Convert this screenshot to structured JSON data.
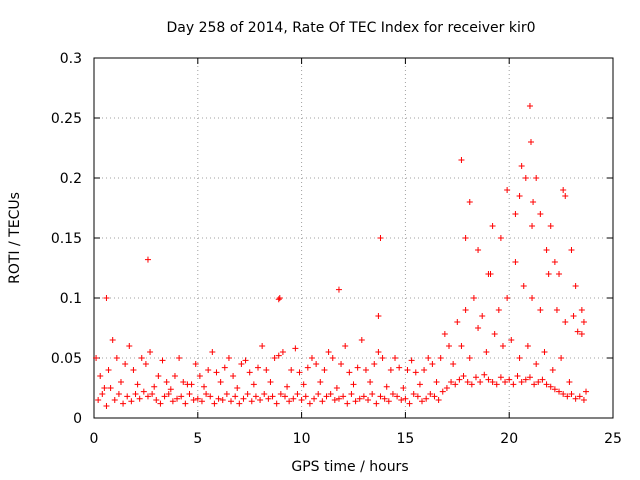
{
  "chart_data": {
    "type": "scatter",
    "title": "Day 258 of 2014, Rate Of TEC Index for receiver kir0",
    "xlabel": "GPS time / hours",
    "ylabel": "ROTI / TECUs",
    "xlim": [
      0,
      25
    ],
    "ylim": [
      0,
      0.3
    ],
    "xticks": [
      0,
      5,
      10,
      15,
      20,
      25
    ],
    "yticks": [
      0,
      0.05,
      0.1,
      0.15,
      0.2,
      0.25,
      0.3
    ],
    "xtick_labels": [
      "0",
      "5",
      "10",
      "15",
      "20",
      "25"
    ],
    "ytick_labels": [
      "0",
      "0.05",
      "0.1",
      "0.15",
      "0.2",
      "0.25",
      "0.3"
    ],
    "grid": true,
    "legend": "none",
    "marker": "plus",
    "color": "#ff0000",
    "series": [
      {
        "x": [
          0.2,
          0.4,
          0.6,
          0.8,
          1.0,
          1.2,
          1.4,
          1.6,
          1.8,
          2.0,
          2.2,
          2.4,
          2.6,
          2.8,
          3.0,
          3.2,
          3.4,
          3.6,
          3.8,
          4.0,
          4.2,
          4.4,
          4.6,
          4.8,
          5.0,
          5.2,
          5.4,
          5.6,
          5.8,
          6.0,
          6.2,
          6.4,
          6.6,
          6.8,
          7.0,
          7.2,
          7.4,
          7.6,
          7.8,
          8.0,
          8.2,
          8.4,
          8.6,
          8.8,
          9.0,
          9.2,
          9.4,
          9.6,
          9.8,
          10.0,
          10.2,
          10.4,
          10.6,
          10.8,
          11.0,
          11.2,
          11.4,
          11.6,
          11.8,
          12.0,
          12.2,
          12.4,
          12.6,
          12.8,
          13.0,
          13.2,
          13.4,
          13.6,
          13.8,
          14.0,
          14.2,
          14.4,
          14.6,
          14.8,
          15.0,
          15.2,
          15.4,
          15.6,
          15.8,
          16.0,
          16.2,
          16.4,
          16.6,
          16.8,
          17.0,
          17.2,
          17.4,
          17.6,
          17.8,
          18.0,
          18.2,
          18.4,
          18.6,
          18.8,
          19.0,
          19.2,
          19.4,
          19.6,
          19.8,
          20.0,
          20.2,
          20.4,
          20.6,
          20.8,
          21.0,
          21.2,
          21.4,
          21.6,
          21.8,
          22.0,
          22.2,
          22.4,
          22.6,
          22.8,
          23.0,
          23.2,
          23.4,
          23.6,
          0.3,
          0.7,
          1.1,
          1.5,
          1.9,
          2.3,
          2.7,
          3.1,
          3.5,
          3.9,
          4.3,
          4.7,
          5.1,
          5.5,
          5.9,
          6.3,
          6.7,
          7.1,
          7.5,
          7.9,
          8.3,
          8.7,
          9.1,
          9.5,
          9.9,
          10.3,
          10.7,
          11.1,
          11.5,
          11.9,
          12.3,
          12.7,
          13.1,
          13.5,
          13.9,
          14.3,
          14.7,
          15.1,
          15.5,
          15.9,
          16.3,
          16.7,
          17.1,
          17.5,
          17.9,
          18.3,
          18.7,
          19.1,
          19.5,
          19.9,
          20.3,
          20.7,
          21.1,
          21.5,
          21.9,
          22.3,
          22.7,
          23.1,
          23.5,
          0.5,
          1.3,
          2.1,
          2.9,
          3.7,
          4.5,
          5.3,
          6.1,
          6.9,
          7.7,
          8.5,
          9.3,
          10.1,
          10.9,
          11.7,
          12.5,
          13.3,
          14.1,
          14.9,
          15.7,
          16.5,
          17.3,
          18.1,
          18.9,
          19.7,
          20.5,
          21.3,
          22.1,
          22.9,
          23.7,
          0.1,
          0.9,
          1.7,
          2.5,
          3.3,
          4.1,
          4.9,
          5.7,
          6.5,
          7.3,
          8.1,
          8.9,
          9.7,
          10.5,
          11.3,
          12.1,
          12.9,
          13.7,
          14.5,
          15.3,
          16.1,
          16.9,
          17.7,
          18.5,
          19.3,
          20.1,
          20.9,
          21.7,
          22.5,
          23.3,
          0.6,
          2.6,
          8.9,
          8.95,
          11.8,
          13.7,
          13.8,
          17.7,
          17.9,
          18.1,
          18.5,
          19.0,
          19.2,
          19.6,
          19.9,
          20.3,
          20.5,
          20.6,
          20.8,
          21.0,
          21.05,
          21.1,
          21.15,
          21.3,
          21.5,
          21.8,
          22.0,
          22.2,
          22.4,
          22.6,
          22.7,
          23.0,
          23.2,
          23.5,
          23.6
        ],
        "y": [
          0.015,
          0.02,
          0.01,
          0.025,
          0.015,
          0.02,
          0.012,
          0.018,
          0.014,
          0.02,
          0.016,
          0.022,
          0.018,
          0.02,
          0.015,
          0.012,
          0.018,
          0.02,
          0.014,
          0.016,
          0.018,
          0.012,
          0.02,
          0.015,
          0.016,
          0.014,
          0.02,
          0.018,
          0.012,
          0.016,
          0.015,
          0.02,
          0.014,
          0.018,
          0.012,
          0.016,
          0.02,
          0.014,
          0.018,
          0.015,
          0.02,
          0.016,
          0.018,
          0.012,
          0.02,
          0.018,
          0.014,
          0.016,
          0.02,
          0.015,
          0.018,
          0.012,
          0.016,
          0.02,
          0.014,
          0.018,
          0.02,
          0.015,
          0.016,
          0.018,
          0.012,
          0.02,
          0.014,
          0.016,
          0.018,
          0.015,
          0.02,
          0.012,
          0.018,
          0.016,
          0.014,
          0.02,
          0.018,
          0.015,
          0.016,
          0.012,
          0.02,
          0.018,
          0.014,
          0.016,
          0.02,
          0.018,
          0.015,
          0.022,
          0.025,
          0.03,
          0.028,
          0.032,
          0.035,
          0.03,
          0.028,
          0.034,
          0.03,
          0.036,
          0.032,
          0.03,
          0.028,
          0.034,
          0.03,
          0.032,
          0.028,
          0.035,
          0.03,
          0.032,
          0.034,
          0.028,
          0.03,
          0.032,
          0.028,
          0.026,
          0.024,
          0.022,
          0.02,
          0.018,
          0.02,
          0.016,
          0.018,
          0.015,
          0.035,
          0.04,
          0.05,
          0.045,
          0.04,
          0.05,
          0.055,
          0.035,
          0.03,
          0.035,
          0.03,
          0.028,
          0.035,
          0.04,
          0.038,
          0.042,
          0.035,
          0.045,
          0.038,
          0.042,
          0.04,
          0.05,
          0.055,
          0.04,
          0.038,
          0.042,
          0.045,
          0.04,
          0.05,
          0.045,
          0.038,
          0.042,
          0.04,
          0.045,
          0.05,
          0.04,
          0.042,
          0.04,
          0.038,
          0.04,
          0.045,
          0.05,
          0.06,
          0.08,
          0.09,
          0.1,
          0.085,
          0.12,
          0.09,
          0.1,
          0.13,
          0.11,
          0.1,
          0.09,
          0.12,
          0.09,
          0.08,
          0.085,
          0.07,
          0.025,
          0.03,
          0.028,
          0.026,
          0.024,
          0.028,
          0.026,
          0.03,
          0.025,
          0.028,
          0.03,
          0.026,
          0.028,
          0.03,
          0.025,
          0.028,
          0.03,
          0.026,
          0.025,
          0.028,
          0.03,
          0.045,
          0.05,
          0.055,
          0.06,
          0.05,
          0.045,
          0.04,
          0.03,
          0.022,
          0.05,
          0.065,
          0.06,
          0.045,
          0.048,
          0.05,
          0.045,
          0.055,
          0.05,
          0.048,
          0.06,
          0.052,
          0.058,
          0.05,
          0.055,
          0.06,
          0.065,
          0.055,
          0.05,
          0.048,
          0.05,
          0.07,
          0.06,
          0.075,
          0.07,
          0.065,
          0.06,
          0.055,
          0.05,
          0.072,
          0.1,
          0.132,
          0.099,
          0.1,
          0.107,
          0.085,
          0.15,
          0.215,
          0.15,
          0.18,
          0.14,
          0.12,
          0.16,
          0.15,
          0.19,
          0.17,
          0.185,
          0.21,
          0.2,
          0.26,
          0.23,
          0.16,
          0.18,
          0.2,
          0.17,
          0.14,
          0.16,
          0.13,
          0.12,
          0.19,
          0.185,
          0.14,
          0.11,
          0.09,
          0.08
        ]
      }
    ]
  }
}
